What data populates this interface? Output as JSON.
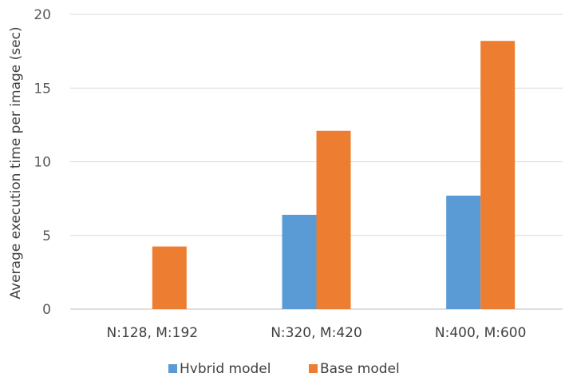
{
  "chart_data": {
    "type": "bar",
    "title": "",
    "xlabel": "",
    "ylabel": "Average execution time per image (sec)",
    "ylim": [
      0,
      20
    ],
    "yticks": [
      0,
      5,
      10,
      15,
      20
    ],
    "grid": true,
    "legend_position": "bottom",
    "categories": [
      "N:128, M:192",
      "N:320, M:420",
      "N:400, M:600"
    ],
    "series": [
      {
        "name": "Hybrid model",
        "color": "#5B9BD5",
        "values": [
          null,
          6.4,
          7.7
        ]
      },
      {
        "name": "Base model",
        "color": "#ED7D31",
        "values": [
          4.25,
          12.1,
          18.2
        ]
      }
    ]
  }
}
